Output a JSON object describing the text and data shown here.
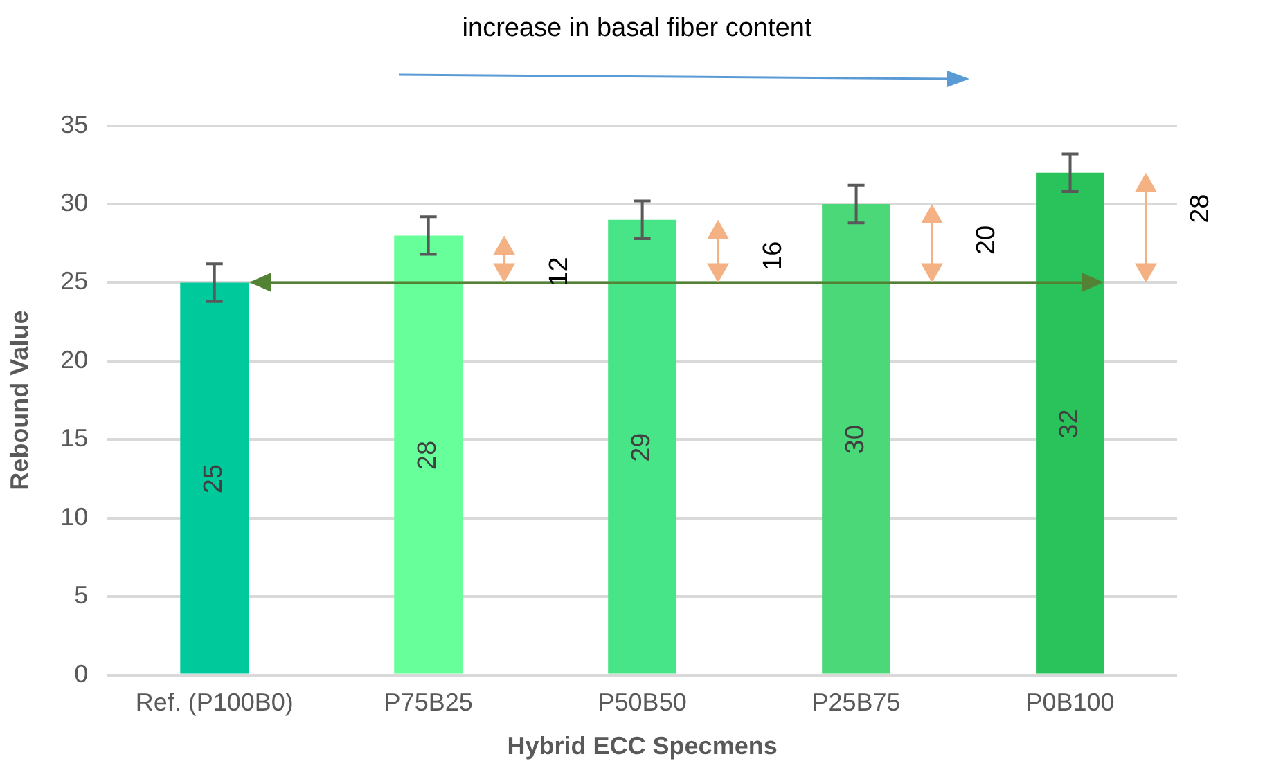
{
  "chart_data": {
    "type": "bar",
    "title": "increase in basal fiber content",
    "xlabel": "Hybrid ECC Specmens",
    "ylabel": "Rebound Value",
    "categories": [
      "Ref. (P100B0)",
      "P75B25",
      "P50B50",
      "P25B75",
      "P0B100"
    ],
    "values": [
      25,
      28,
      29,
      30,
      32
    ],
    "colors": [
      "#00c99b",
      "#66ff99",
      "#47e588",
      "#4ad878",
      "#2ac25a"
    ],
    "errors": [
      1.2,
      1.2,
      1.2,
      1.2,
      1.2
    ],
    "data_labels": true,
    "ylim": [
      0,
      35
    ],
    "yticks": [
      0,
      5,
      10,
      15,
      20,
      25,
      30,
      35
    ],
    "grid": "y",
    "legend": false,
    "ref_lines": [
      {
        "axis": "y",
        "value": 25,
        "color": "#548235"
      }
    ],
    "annotations": [
      "12",
      "16",
      "20",
      "28"
    ]
  }
}
